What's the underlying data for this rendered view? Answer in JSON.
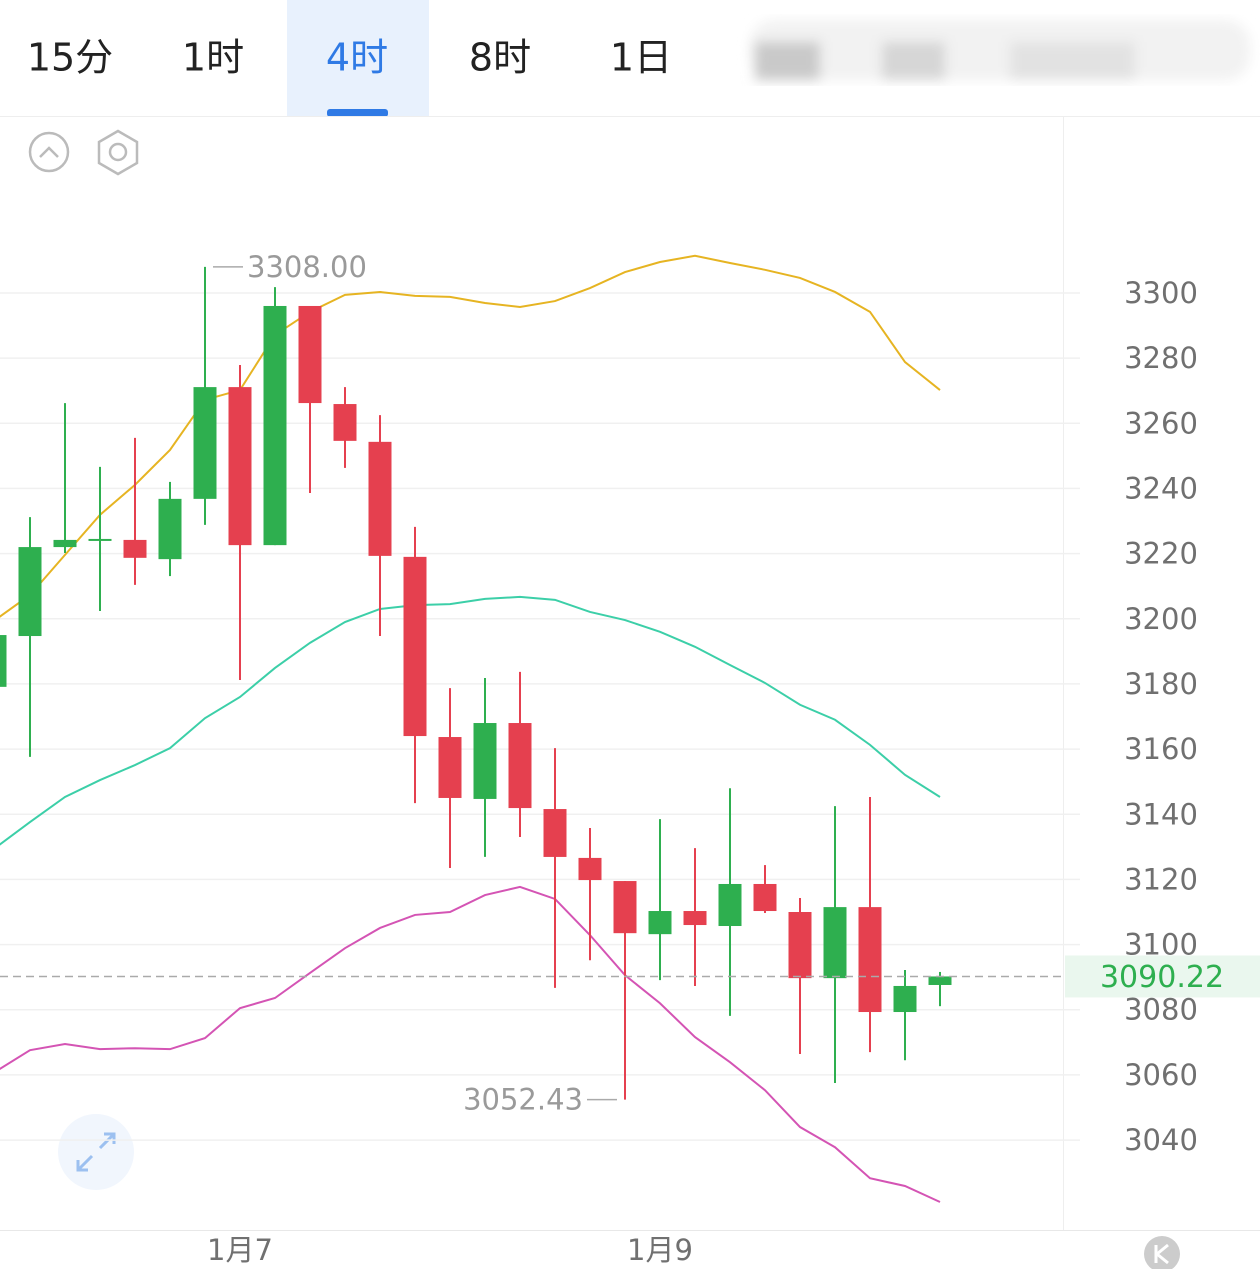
{
  "tabs": [
    "15分",
    "1时",
    "4时",
    "8时",
    "1日"
  ],
  "selected_tab": 2,
  "chart_data": {
    "type": "candlestick",
    "categories": [
      null,
      null,
      null,
      null,
      null,
      null,
      null,
      "1月7",
      null,
      null,
      null,
      null,
      null,
      null,
      null,
      null,
      null,
      null,
      null,
      "1月9",
      null,
      null,
      null,
      null,
      null,
      null,
      null,
      null
    ],
    "open": [
      3179.1,
      3194.7,
      3222.0,
      3223.9,
      3224.2,
      3218.3,
      3236.8,
      3271.1,
      3222.6,
      3296.0,
      3265.9,
      3254.3,
      3219.0,
      3163.7,
      3144.7,
      3168.0,
      3141.6,
      3126.6,
      3119.5,
      3103.2,
      3110.3,
      3105.7,
      3118.6,
      3110.0,
      3089.7,
      3111.5,
      3079.3,
      3087.6
    ],
    "high": [
      3195.0,
      3231.2,
      3266.2,
      3246.6,
      3255.5,
      3242.0,
      3308,
      3277.9,
      3301.8,
      3296.0,
      3271.1,
      3262.5,
      3228.2,
      3178.7,
      3181.8,
      3183.7,
      3160.3,
      3135.8,
      3119.5,
      3138.5,
      3129.6,
      3148.0,
      3124.4,
      3114.3,
      3142.5,
      3145.3,
      3092.2,
      3091.6
    ],
    "low": [
      3179.1,
      3157.6,
      3220.2,
      3202.4,
      3210.4,
      3213.1,
      3228.8,
      3181.2,
      3222.6,
      3238.6,
      3246.3,
      3194.7,
      3143.4,
      3123.5,
      3126.9,
      3133.0,
      3086.7,
      3095.2,
      3052.43,
      3089.1,
      3087.3,
      3078.1,
      3109.7,
      3066.4,
      3057.5,
      3067.0,
      3064.5,
      3081.1
    ],
    "close": [
      3195.0,
      3222.0,
      3224.2,
      3224.5,
      3218.7,
      3236.8,
      3271.1,
      3222.6,
      3296.0,
      3266.2,
      3254.6,
      3219.3,
      3164.0,
      3145.0,
      3168.0,
      3141.9,
      3126.9,
      3119.8,
      3103.5,
      3110.3,
      3106.0,
      3118.6,
      3110.3,
      3089.7,
      3111.5,
      3079.3,
      3087.3,
      3090.22
    ],
    "up_color": "#2eaf4f",
    "down_color": "#e5404f",
    "overlays": [
      {
        "color": "#e6b422",
        "values": [
          3199.6,
          3207.3,
          3219.6,
          3231.9,
          3241.1,
          3251.8,
          3267.2,
          3270.2,
          3287.1,
          3294.2,
          3299.4,
          3300.3,
          3299.1,
          3298.8,
          3296.9,
          3295.7,
          3297.5,
          3301.5,
          3306.4,
          3309.5,
          3311.4,
          3309.2,
          3307.1,
          3304.6,
          3300.3,
          3294.2,
          3278.8,
          3270.2
        ]
      },
      {
        "color": "#3ccfa8",
        "values": [
          3129.6,
          3137.6,
          3145.3,
          3150.5,
          3155.1,
          3160.3,
          3169.5,
          3176.0,
          3184.9,
          3192.6,
          3199.0,
          3203.0,
          3204.2,
          3204.5,
          3206.1,
          3206.7,
          3205.8,
          3202.1,
          3199.6,
          3196.0,
          3191.4,
          3185.8,
          3180.3,
          3173.6,
          3169.0,
          3161.3,
          3152.1,
          3145.3
        ]
      },
      {
        "color": "#d454b4",
        "values": [
          3060.9,
          3067.6,
          3069.5,
          3067.9,
          3068.2,
          3067.9,
          3071.3,
          3080.5,
          3083.6,
          3091.3,
          3098.9,
          3105.1,
          3109.1,
          3110.0,
          3115.2,
          3117.7,
          3114.0,
          3102.9,
          3090.6,
          3082.0,
          3071.6,
          3063.9,
          3055.3,
          3044.0,
          3037.8,
          3028.3,
          3025.9,
          3021.0
        ]
      }
    ],
    "ylim": [
      3012.4,
      3354
    ],
    "yticks": [
      3040,
      3060,
      3080,
      3100,
      3120,
      3140,
      3160,
      3180,
      3200,
      3220,
      3240,
      3260,
      3280,
      3300
    ],
    "grid": true,
    "max_label": {
      "value": 3308,
      "label": "3308.00"
    },
    "min_label": {
      "value": 3052.43,
      "label": "3052.43"
    },
    "last_price": 3090.22
  }
}
